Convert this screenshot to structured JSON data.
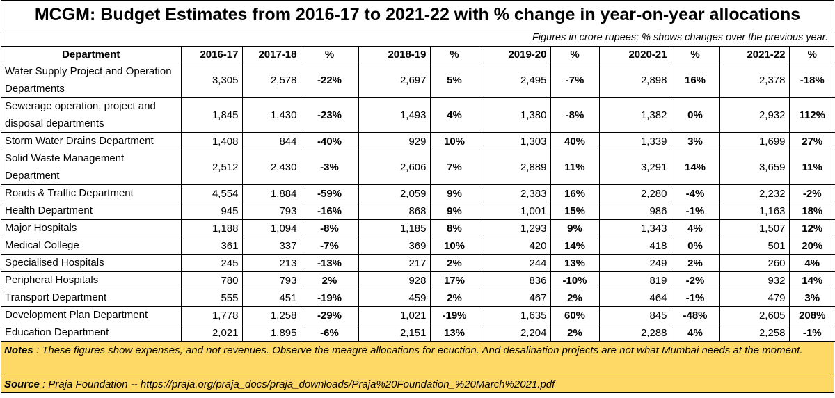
{
  "title": "MCGM: Budget Estimates from 2016-17 to 2021-22 with % change in year-on-year allocations",
  "subtitle": "Figures in crore rupees; % shows changes over the previous year.",
  "columns": [
    "Department",
    "2016-17",
    "2017-18",
    "%",
    "2018-19",
    "%",
    "2019-20",
    "%",
    "2020-21",
    "%",
    "2021-22",
    "%"
  ],
  "rows": [
    {
      "dept": "Water Supply Project and Operation Departments",
      "v": [
        "3,305",
        "2,578",
        "-22%",
        "2,697",
        "5%",
        "2,495",
        "-7%",
        "2,898",
        "16%",
        "2,378",
        "-18%"
      ]
    },
    {
      "dept": "Sewerage operation, project and disposal departments",
      "v": [
        "1,845",
        "1,430",
        "-23%",
        "1,493",
        "4%",
        "1,380",
        "-8%",
        "1,382",
        "0%",
        "2,932",
        "112%"
      ]
    },
    {
      "dept": "Storm Water Drains Department",
      "v": [
        "1,408",
        "844",
        "-40%",
        "929",
        "10%",
        "1,303",
        "40%",
        "1,339",
        "3%",
        "1,699",
        "27%"
      ]
    },
    {
      "dept": "Solid Waste Management Department",
      "v": [
        "2,512",
        "2,430",
        "-3%",
        "2,606",
        "7%",
        "2,889",
        "11%",
        "3,291",
        "14%",
        "3,659",
        "11%"
      ]
    },
    {
      "dept": "Roads & Traffic Department",
      "v": [
        "4,554",
        "1,884",
        "-59%",
        "2,059",
        "9%",
        "2,383",
        "16%",
        "2,280",
        "-4%",
        "2,232",
        "-2%"
      ]
    },
    {
      "dept": "Health Department",
      "v": [
        "945",
        "793",
        "-16%",
        "868",
        "9%",
        "1,001",
        "15%",
        "986",
        "-1%",
        "1,163",
        "18%"
      ]
    },
    {
      "dept": "Major Hospitals",
      "v": [
        "1,188",
        "1,094",
        "-8%",
        "1,185",
        "8%",
        "1,293",
        "9%",
        "1,343",
        "4%",
        "1,507",
        "12%"
      ]
    },
    {
      "dept": "Medical College",
      "v": [
        "361",
        "337",
        "-7%",
        "369",
        "10%",
        "420",
        "14%",
        "418",
        "0%",
        "501",
        "20%"
      ]
    },
    {
      "dept": "Specialised Hospitals",
      "v": [
        "245",
        "213",
        "-13%",
        "217",
        "2%",
        "244",
        "13%",
        "249",
        "2%",
        "260",
        "4%"
      ]
    },
    {
      "dept": "Peripheral Hospitals",
      "v": [
        "780",
        "793",
        "2%",
        "928",
        "17%",
        "836",
        "-10%",
        "819",
        "-2%",
        "932",
        "14%"
      ]
    },
    {
      "dept": "Transport Department",
      "v": [
        "555",
        "451",
        "-19%",
        "459",
        "2%",
        "467",
        "2%",
        "464",
        "-1%",
        "479",
        "3%"
      ]
    },
    {
      "dept": "Development Plan Department",
      "v": [
        "1,778",
        "1,258",
        "-29%",
        "1,021",
        "-19%",
        "1,635",
        "60%",
        "845",
        "-48%",
        "2,605",
        "208%"
      ]
    },
    {
      "dept": "Education Department",
      "v": [
        "2,021",
        "1,895",
        "-6%",
        "2,151",
        "13%",
        "2,204",
        "2%",
        "2,288",
        "4%",
        "2,258",
        "-1%"
      ]
    }
  ],
  "notes": {
    "label": "Notes",
    "text": " : These figures show expenses, and not revenues. Observe the meagre allocations for ecuction.  And desalination projects are not what Mumbai needs at the moment."
  },
  "source": {
    "label": "Source",
    "text": " : Praja Foundation -- https://praja.org/praja_docs/praja_downloads/Praja%20Foundation_%20March%2021.pdf"
  }
}
